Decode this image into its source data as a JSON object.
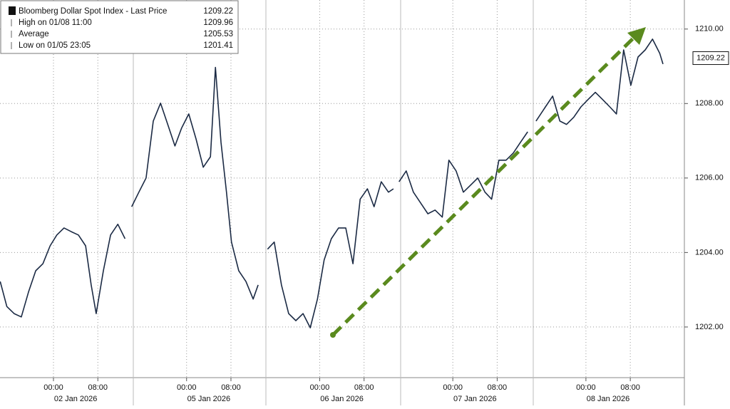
{
  "chart_data": {
    "type": "line",
    "series": [
      {
        "name": "Bloomberg Dollar Spot Index - Last Price",
        "last": 1209.22,
        "color": "#1b2a44",
        "x": [
          -9.6,
          -8.4,
          -7.1,
          -5.8,
          -4.5,
          -3.2,
          -1.9,
          -0.6,
          0.6,
          1.9,
          3.2,
          4.5,
          5.8,
          6.8,
          7.7,
          9.0,
          10.3,
          11.6,
          12.9,
          13.5,
          14.1,
          15.4,
          16.7,
          18.0,
          19.3,
          20.6,
          21.9,
          23.1,
          24.4,
          25.7,
          27.0,
          28.3,
          29.2,
          30.2,
          31.2,
          32.1,
          33.4,
          34.7,
          36.0,
          36.9,
          37.8,
          38.6,
          39.8,
          41.1,
          42.4,
          43.7,
          45.0,
          46.3,
          47.6,
          48.8,
          50.1,
          51.4,
          52.7,
          54.0,
          55.3,
          56.6,
          57.8,
          59.1,
          60.4,
          61.3,
          61.8,
          62.3,
          63.6,
          64.9,
          66.2,
          67.5,
          68.8,
          70.1,
          71.3,
          72.6,
          73.9,
          75.2,
          76.5,
          77.8,
          79.0,
          80.3,
          81.6,
          82.9,
          84.2,
          85.5,
          86.2,
          87.0,
          88.7,
          90.0,
          91.3,
          92.5,
          93.8,
          95.1,
          96.4,
          97.7,
          99.0,
          100.3,
          101.5,
          102.8,
          104.1,
          105.4,
          106.7,
          108.0,
          109.3,
          109.9
        ],
        "values": [
          1203.22,
          1202.55,
          1202.36,
          1202.27,
          1202.94,
          1203.51,
          1203.7,
          1204.18,
          1204.47,
          1204.66,
          1204.56,
          1204.47,
          1204.18,
          1203.13,
          1202.36,
          1203.51,
          1204.47,
          1204.76,
          1204.37,
          null,
          1205.23,
          1205.62,
          1206.0,
          1207.53,
          1208.01,
          1207.44,
          1206.86,
          1207.34,
          1207.72,
          1207.05,
          1206.29,
          1206.57,
          1208.97,
          1206.96,
          1205.62,
          1204.28,
          1203.51,
          1203.22,
          1202.75,
          1203.13,
          null,
          1204.09,
          1204.28,
          1203.13,
          1202.36,
          1202.17,
          1202.36,
          1201.98,
          1202.75,
          1203.8,
          1204.37,
          1204.66,
          1204.66,
          1203.7,
          1205.43,
          1205.71,
          1205.23,
          1205.9,
          1205.62,
          1205.71,
          null,
          1205.9,
          1206.19,
          1205.62,
          1205.33,
          1205.04,
          1205.14,
          1204.95,
          1206.48,
          1206.19,
          1205.62,
          1205.81,
          1206.0,
          1205.62,
          1205.43,
          1206.48,
          1206.48,
          1206.67,
          1206.96,
          1207.24,
          null,
          1207.53,
          1207.91,
          1208.2,
          1207.53,
          1207.44,
          1207.63,
          1207.91,
          1208.11,
          1208.3,
          1208.11,
          1207.91,
          1207.72,
          1209.44,
          1208.49,
          1209.25,
          1209.44,
          1209.73,
          1209.35,
          1209.06
        ]
      }
    ],
    "legend": [
      {
        "label": "High on 01/08 11:00",
        "value": 1209.96
      },
      {
        "label": "Average",
        "value": 1205.53
      },
      {
        "label": "Low on 01/05 23:05",
        "value": 1201.41
      }
    ],
    "xlim": [
      -9.64,
      113.75
    ],
    "xticks": [
      {
        "value": 0,
        "label": "00:00"
      },
      {
        "value": 8,
        "label": "08:00"
      },
      {
        "value": 24,
        "label": "00:00"
      },
      {
        "value": 32,
        "label": "08:00"
      },
      {
        "value": 48,
        "label": "00:00"
      },
      {
        "value": 56,
        "label": "08:00"
      },
      {
        "value": 72,
        "label": "00:00"
      },
      {
        "value": 80,
        "label": "08:00"
      },
      {
        "value": 96,
        "label": "00:00"
      },
      {
        "value": 104,
        "label": "08:00"
      }
    ],
    "x_date_labels": [
      {
        "value": 4,
        "label": "02 Jan 2026"
      },
      {
        "value": 28,
        "label": "05 Jan 2026"
      },
      {
        "value": 52,
        "label": "06 Jan 2026"
      },
      {
        "value": 76,
        "label": "07 Jan 2026"
      },
      {
        "value": 100,
        "label": "08 Jan 2026"
      }
    ],
    "ylim": [
      1200.64,
      1210.78
    ],
    "yticks": [
      {
        "value": 1202,
        "label": "1202.00"
      },
      {
        "value": 1204,
        "label": "1204.00"
      },
      {
        "value": 1206,
        "label": "1206.00"
      },
      {
        "value": 1208,
        "label": "1208.00"
      },
      {
        "value": 1210,
        "label": "1210.00"
      }
    ],
    "grid": true
  }
}
